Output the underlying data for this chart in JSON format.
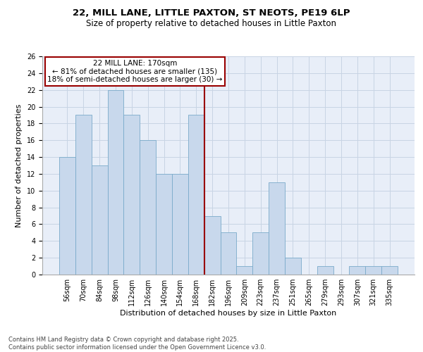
{
  "title_line1": "22, MILL LANE, LITTLE PAXTON, ST NEOTS, PE19 6LP",
  "title_line2": "Size of property relative to detached houses in Little Paxton",
  "xlabel": "Distribution of detached houses by size in Little Paxton",
  "ylabel": "Number of detached properties",
  "categories": [
    "56sqm",
    "70sqm",
    "84sqm",
    "98sqm",
    "112sqm",
    "126sqm",
    "140sqm",
    "154sqm",
    "168sqm",
    "182sqm",
    "196sqm",
    "209sqm",
    "223sqm",
    "237sqm",
    "251sqm",
    "265sqm",
    "279sqm",
    "293sqm",
    "307sqm",
    "321sqm",
    "335sqm"
  ],
  "values": [
    14,
    19,
    13,
    22,
    19,
    16,
    12,
    12,
    19,
    7,
    5,
    1,
    5,
    11,
    2,
    0,
    1,
    0,
    1,
    1,
    1
  ],
  "bar_color": "#c8d8ec",
  "bar_edge_color": "#7aaaca",
  "reference_line_x": 8.5,
  "reference_line_color": "#990000",
  "annotation_text": "22 MILL LANE: 170sqm\n← 81% of detached houses are smaller (135)\n18% of semi-detached houses are larger (30) →",
  "annotation_box_color": "#990000",
  "ylim": [
    0,
    26
  ],
  "yticks": [
    0,
    2,
    4,
    6,
    8,
    10,
    12,
    14,
    16,
    18,
    20,
    22,
    24,
    26
  ],
  "grid_color": "#c8d4e4",
  "background_color": "#e8eef8",
  "footer_text": "Contains HM Land Registry data © Crown copyright and database right 2025.\nContains public sector information licensed under the Open Government Licence v3.0.",
  "title_fontsize": 9.5,
  "subtitle_fontsize": 8.5,
  "tick_fontsize": 7,
  "label_fontsize": 8,
  "annotation_fontsize": 7.5,
  "footer_fontsize": 6
}
